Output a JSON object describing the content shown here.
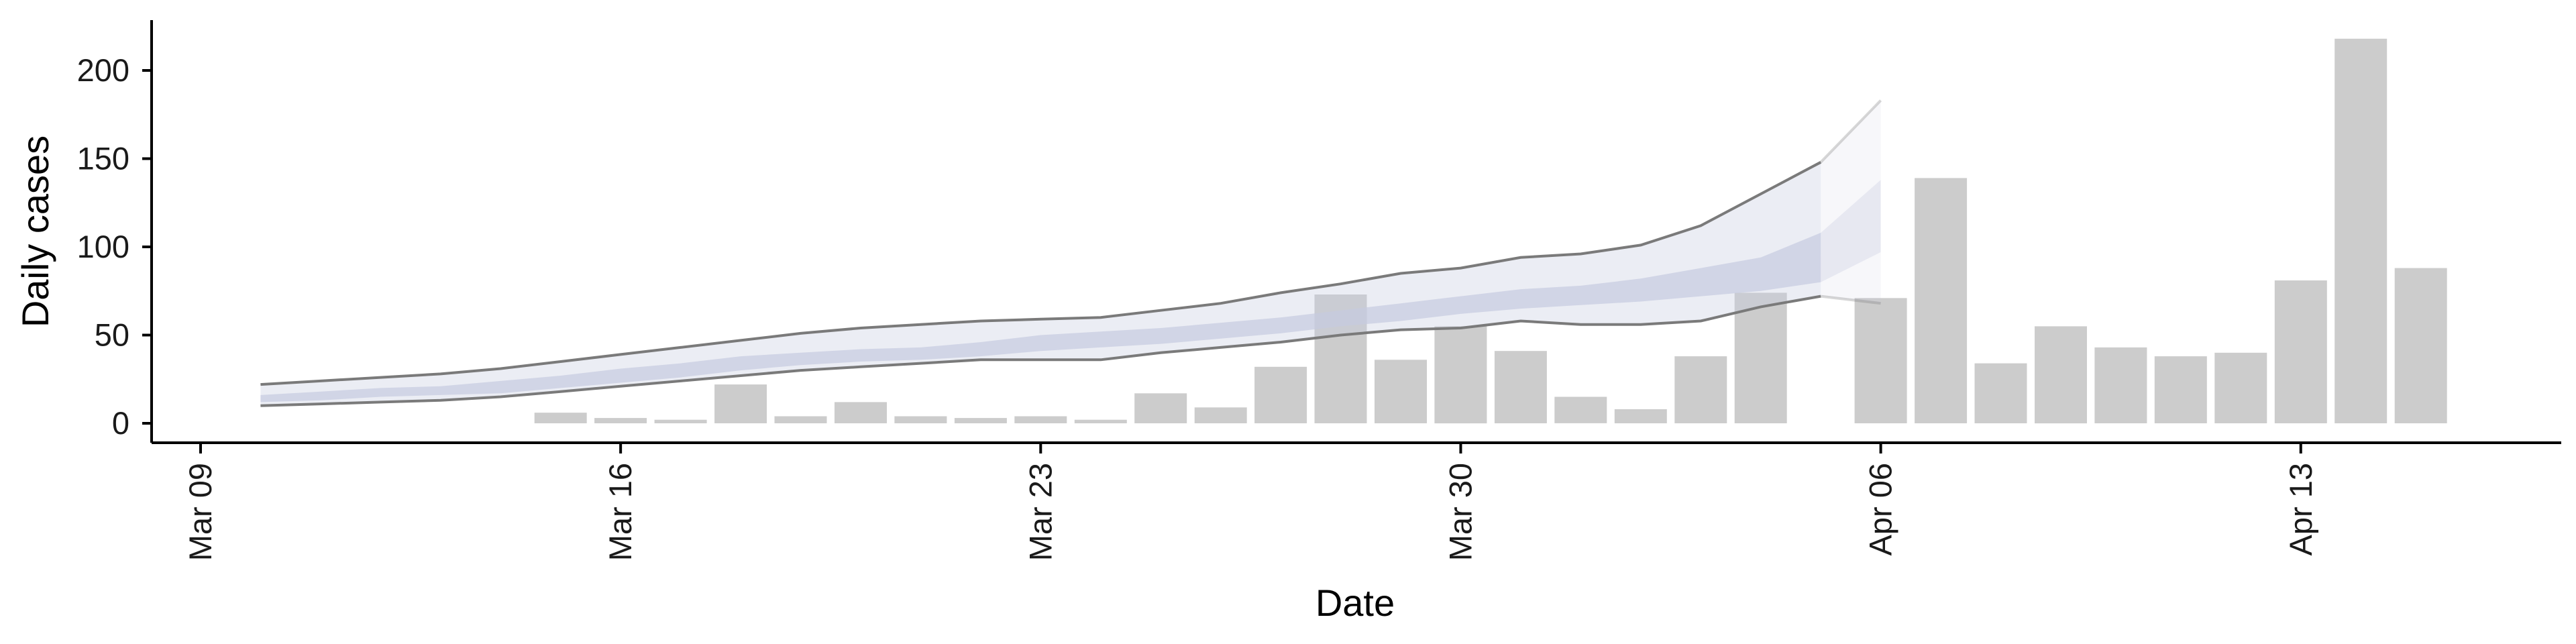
{
  "chart_data": {
    "type": "bar",
    "xlabel": "Date",
    "ylabel": "Daily cases",
    "x_ticks": [
      "Mar 09",
      "Mar 16",
      "Mar 23",
      "Mar 30",
      "Apr 06",
      "Apr 13"
    ],
    "y_ticks": [
      0,
      50,
      100,
      150,
      200
    ],
    "ylim": [
      -10,
      230
    ],
    "xlim": [
      "2020-03-09",
      "2020-04-17"
    ],
    "grid": false,
    "legend": "none",
    "bars": {
      "color": "#cccccc",
      "dates": [
        "2020-03-15",
        "2020-03-16",
        "2020-03-17",
        "2020-03-18",
        "2020-03-19",
        "2020-03-20",
        "2020-03-21",
        "2020-03-22",
        "2020-03-23",
        "2020-03-24",
        "2020-03-25",
        "2020-03-26",
        "2020-03-27",
        "2020-03-28",
        "2020-03-29",
        "2020-03-30",
        "2020-03-31",
        "2020-04-01",
        "2020-04-02",
        "2020-04-03",
        "2020-04-04",
        "2020-04-06",
        "2020-04-07",
        "2020-04-08",
        "2020-04-09",
        "2020-04-10",
        "2020-04-11",
        "2020-04-12",
        "2020-04-13",
        "2020-04-14",
        "2020-04-15"
      ],
      "values": [
        6,
        3,
        2,
        22,
        4,
        12,
        4,
        3,
        4,
        2,
        17,
        9,
        32,
        73,
        36,
        55,
        41,
        15,
        8,
        38,
        74,
        71,
        139,
        34,
        55,
        43,
        38,
        40,
        81,
        218,
        88
      ]
    },
    "estimate": {
      "dates": [
        "2020-03-10",
        "2020-03-11",
        "2020-03-12",
        "2020-03-13",
        "2020-03-14",
        "2020-03-15",
        "2020-03-16",
        "2020-03-17",
        "2020-03-18",
        "2020-03-19",
        "2020-03-20",
        "2020-03-21",
        "2020-03-22",
        "2020-03-23",
        "2020-03-24",
        "2020-03-25",
        "2020-03-26",
        "2020-03-27",
        "2020-03-28",
        "2020-03-29",
        "2020-03-30",
        "2020-03-31",
        "2020-04-01",
        "2020-04-02",
        "2020-04-03",
        "2020-04-04",
        "2020-04-05",
        "2020-04-06"
      ],
      "observed_until": "2020-04-05",
      "upper_90": [
        22,
        24,
        26,
        28,
        31,
        35,
        39,
        43,
        47,
        51,
        54,
        56,
        58,
        59,
        60,
        64,
        68,
        74,
        79,
        85,
        88,
        94,
        96,
        101,
        112,
        130,
        148,
        183
      ],
      "upper_50": [
        16,
        18,
        20,
        21,
        24,
        27,
        31,
        34,
        38,
        40,
        42,
        43,
        46,
        50,
        52,
        54,
        57,
        60,
        64,
        68,
        72,
        76,
        78,
        82,
        88,
        94,
        108,
        138
      ],
      "median": [
        14,
        15,
        17,
        18,
        20,
        23,
        26,
        30,
        34,
        37,
        39,
        40,
        43,
        46,
        47,
        49,
        52,
        55,
        59,
        63,
        67,
        71,
        73,
        76,
        80,
        85,
        93,
        114
      ],
      "lower_50": [
        12,
        13,
        15,
        16,
        17,
        20,
        23,
        26,
        30,
        33,
        35,
        36,
        38,
        41,
        43,
        45,
        48,
        51,
        55,
        58,
        62,
        65,
        67,
        69,
        72,
        75,
        80,
        97
      ],
      "lower_90": [
        10,
        11,
        12,
        13,
        15,
        18,
        21,
        24,
        27,
        30,
        32,
        34,
        36,
        36,
        36,
        40,
        43,
        46,
        50,
        53,
        54,
        58,
        56,
        56,
        58,
        66,
        72,
        68
      ],
      "band_color": "#c6cbe0",
      "bound_color": "#7a7a7a"
    }
  }
}
